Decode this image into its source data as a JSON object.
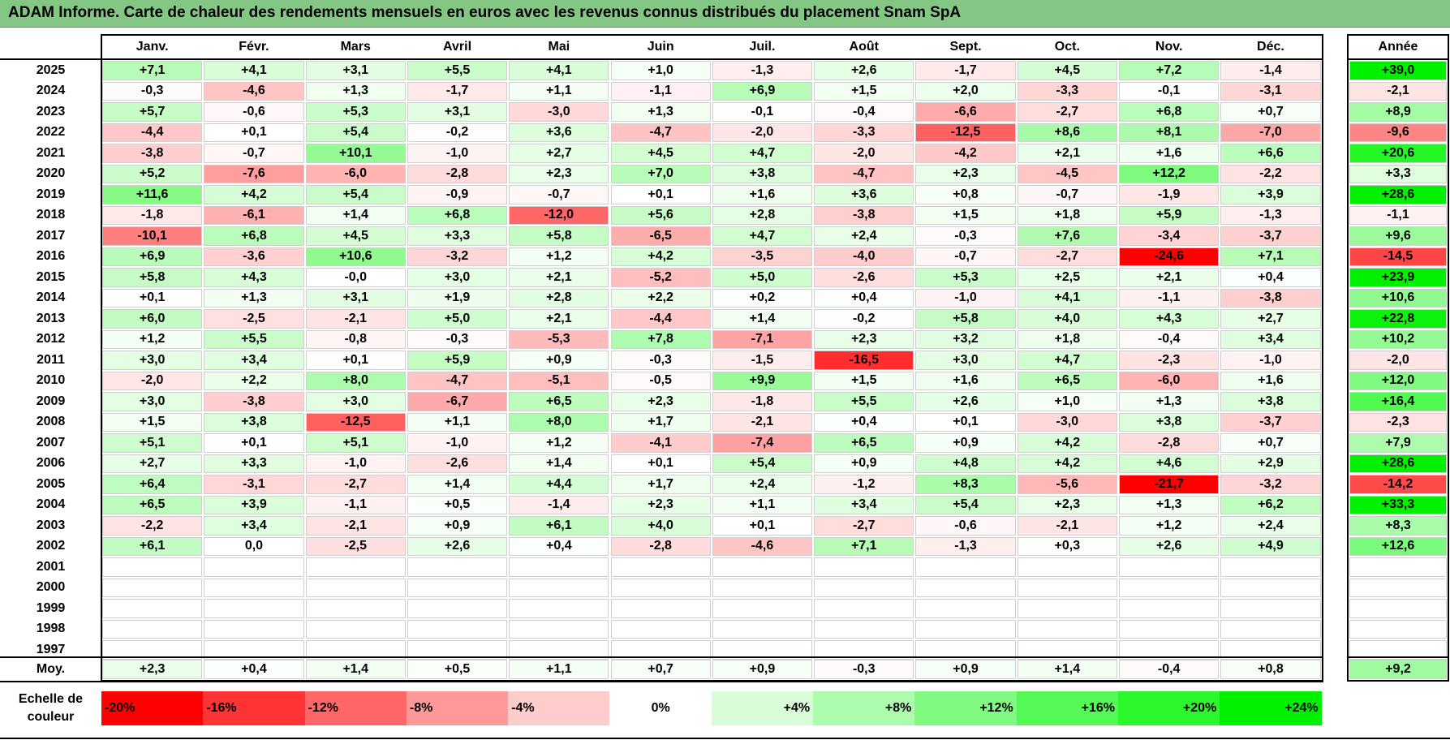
{
  "title": "ADAM Informe. Carte de chaleur des rendements mensuels en euros avec les revenus connus distribués du placement Snam SpA",
  "chart_data": {
    "type": "heatmap",
    "columns": [
      "Janv.",
      "Févr.",
      "Mars",
      "Avril",
      "Mai",
      "Juin",
      "Juil.",
      "Août",
      "Sept.",
      "Oct.",
      "Nov.",
      "Déc."
    ],
    "year_column_label": "Année",
    "rows": [
      {
        "year": "2025",
        "months": [
          "+7,1",
          "+4,1",
          "+3,1",
          "+5,5",
          "+4,1",
          "+1,0",
          "-1,3",
          "+2,6",
          "-1,7",
          "+4,5",
          "+7,2",
          "-1,4"
        ],
        "annual": "+39,0"
      },
      {
        "year": "2024",
        "months": [
          "-0,3",
          "-4,6",
          "+1,3",
          "-1,7",
          "+1,1",
          "-1,1",
          "+6,9",
          "+1,5",
          "+2,0",
          "-3,3",
          "-0,1",
          "-3,1"
        ],
        "annual": "-2,1"
      },
      {
        "year": "2023",
        "months": [
          "+5,7",
          "-0,6",
          "+5,3",
          "+3,1",
          "-3,0",
          "+1,3",
          "-0,1",
          "-0,4",
          "-6,6",
          "-2,7",
          "+6,8",
          "+0,7"
        ],
        "annual": "+8,9"
      },
      {
        "year": "2022",
        "months": [
          "-4,4",
          "+0,1",
          "+5,4",
          "-0,2",
          "+3,6",
          "-4,7",
          "-2,0",
          "-3,3",
          "-12,5",
          "+8,6",
          "+8,1",
          "-7,0"
        ],
        "annual": "-9,6"
      },
      {
        "year": "2021",
        "months": [
          "-3,8",
          "-0,7",
          "+10,1",
          "-1,0",
          "+2,7",
          "+4,5",
          "+4,7",
          "-2,0",
          "-4,2",
          "+2,1",
          "+1,6",
          "+6,6"
        ],
        "annual": "+20,6"
      },
      {
        "year": "2020",
        "months": [
          "+5,2",
          "-7,6",
          "-6,0",
          "-2,8",
          "+2,3",
          "+7,0",
          "+3,8",
          "-4,7",
          "+2,3",
          "-4,5",
          "+12,2",
          "-2,2"
        ],
        "annual": "+3,3"
      },
      {
        "year": "2019",
        "months": [
          "+11,6",
          "+4,2",
          "+5,4",
          "-0,9",
          "-0,7",
          "+0,1",
          "+1,6",
          "+3,6",
          "+0,8",
          "-0,7",
          "-1,9",
          "+3,9"
        ],
        "annual": "+28,6"
      },
      {
        "year": "2018",
        "months": [
          "-1,8",
          "-6,1",
          "+1,4",
          "+6,8",
          "-12,0",
          "+5,6",
          "+2,8",
          "-3,8",
          "+1,5",
          "+1,8",
          "+5,9",
          "-1,3"
        ],
        "annual": "-1,1"
      },
      {
        "year": "2017",
        "months": [
          "-10,1",
          "+6,8",
          "+4,5",
          "+3,3",
          "+5,8",
          "-6,5",
          "+4,7",
          "+2,4",
          "-0,3",
          "+7,6",
          "-3,4",
          "-3,7"
        ],
        "annual": "+9,6"
      },
      {
        "year": "2016",
        "months": [
          "+6,9",
          "-3,6",
          "+10,6",
          "-3,2",
          "+1,2",
          "+4,2",
          "-3,5",
          "-4,0",
          "-0,7",
          "-2,7",
          "-24,6",
          "+7,1"
        ],
        "annual": "-14,5"
      },
      {
        "year": "2015",
        "months": [
          "+5,8",
          "+4,3",
          "-0,0",
          "+3,0",
          "+2,1",
          "-5,2",
          "+5,0",
          "-2,6",
          "+5,3",
          "+2,5",
          "+2,1",
          "+0,4"
        ],
        "annual": "+23,9"
      },
      {
        "year": "2014",
        "months": [
          "+0,1",
          "+1,3",
          "+3,1",
          "+1,9",
          "+2,8",
          "+2,2",
          "+0,2",
          "+0,4",
          "-1,0",
          "+4,1",
          "-1,1",
          "-3,8"
        ],
        "annual": "+10,6"
      },
      {
        "year": "2013",
        "months": [
          "+6,0",
          "-2,5",
          "-2,1",
          "+5,0",
          "+2,1",
          "-4,4",
          "+1,4",
          "-0,2",
          "+5,8",
          "+4,0",
          "+4,3",
          "+2,7"
        ],
        "annual": "+22,8"
      },
      {
        "year": "2012",
        "months": [
          "+1,2",
          "+5,5",
          "-0,8",
          "-0,3",
          "-5,3",
          "+7,8",
          "-7,1",
          "+2,3",
          "+3,2",
          "+1,8",
          "-0,4",
          "+3,4"
        ],
        "annual": "+10,2"
      },
      {
        "year": "2011",
        "months": [
          "+3,0",
          "+3,4",
          "+0,1",
          "+5,9",
          "+0,9",
          "-0,3",
          "-1,5",
          "-16,5",
          "+3,0",
          "+4,7",
          "-2,3",
          "-1,0"
        ],
        "annual": "-2,0"
      },
      {
        "year": "2010",
        "months": [
          "-2,0",
          "+2,2",
          "+8,0",
          "-4,7",
          "-5,1",
          "-0,5",
          "+9,9",
          "+1,5",
          "+1,6",
          "+6,5",
          "-6,0",
          "+1,6"
        ],
        "annual": "+12,0"
      },
      {
        "year": "2009",
        "months": [
          "+3,0",
          "-3,8",
          "+3,0",
          "-6,7",
          "+6,5",
          "+2,3",
          "-1,8",
          "+5,5",
          "+2,6",
          "+1,0",
          "+1,3",
          "+3,8"
        ],
        "annual": "+16,4"
      },
      {
        "year": "2008",
        "months": [
          "+1,5",
          "+3,8",
          "-12,5",
          "+1,1",
          "+8,0",
          "+1,7",
          "-2,1",
          "+0,4",
          "+0,1",
          "-3,0",
          "+3,8",
          "-3,7"
        ],
        "annual": "-2,3"
      },
      {
        "year": "2007",
        "months": [
          "+5,1",
          "+0,1",
          "+5,1",
          "-1,0",
          "+1,2",
          "-4,1",
          "-7,4",
          "+6,5",
          "+0,9",
          "+4,2",
          "-2,8",
          "+0,7"
        ],
        "annual": "+7,9"
      },
      {
        "year": "2006",
        "months": [
          "+2,7",
          "+3,3",
          "-1,0",
          "-2,6",
          "+1,4",
          "+0,1",
          "+5,4",
          "+0,9",
          "+4,8",
          "+4,2",
          "+4,6",
          "+2,9"
        ],
        "annual": "+28,6"
      },
      {
        "year": "2005",
        "months": [
          "+6,4",
          "-3,1",
          "-2,7",
          "+1,4",
          "+4,4",
          "+1,7",
          "+2,4",
          "-1,2",
          "+8,3",
          "-5,6",
          "-21,7",
          "-3,2"
        ],
        "annual": "-14,2"
      },
      {
        "year": "2004",
        "months": [
          "+6,5",
          "+3,9",
          "-1,1",
          "+0,5",
          "-1,4",
          "+2,3",
          "+1,1",
          "+3,4",
          "+5,4",
          "+2,3",
          "+1,3",
          "+6,2"
        ],
        "annual": "+33,3"
      },
      {
        "year": "2003",
        "months": [
          "-2,2",
          "+3,4",
          "-2,1",
          "+0,9",
          "+6,1",
          "+4,0",
          "+0,1",
          "-2,7",
          "-0,6",
          "-2,1",
          "+1,2",
          "+2,4"
        ],
        "annual": "+8,3"
      },
      {
        "year": "2002",
        "months": [
          "+6,1",
          "0,0",
          "-2,5",
          "+2,6",
          "+0,4",
          "-2,8",
          "-4,6",
          "+7,1",
          "-1,3",
          "+0,3",
          "+2,6",
          "+4,9"
        ],
        "annual": "+12,6"
      },
      {
        "year": "2001",
        "months": [
          "",
          "",
          "",
          "",
          "",
          "",
          "",
          "",
          "",
          "",
          "",
          ""
        ],
        "annual": ""
      },
      {
        "year": "2000",
        "months": [
          "",
          "",
          "",
          "",
          "",
          "",
          "",
          "",
          "",
          "",
          "",
          ""
        ],
        "annual": ""
      },
      {
        "year": "1999",
        "months": [
          "",
          "",
          "",
          "",
          "",
          "",
          "",
          "",
          "",
          "",
          "",
          ""
        ],
        "annual": ""
      },
      {
        "year": "1998",
        "months": [
          "",
          "",
          "",
          "",
          "",
          "",
          "",
          "",
          "",
          "",
          "",
          ""
        ],
        "annual": ""
      },
      {
        "year": "1997",
        "months": [
          "",
          "",
          "",
          "",
          "",
          "",
          "",
          "",
          "",
          "",
          "",
          ""
        ],
        "annual": ""
      }
    ],
    "average": {
      "label": "Moy.",
      "months": [
        "+2,3",
        "+0,4",
        "+1,4",
        "+0,5",
        "+1,1",
        "+0,7",
        "+0,9",
        "-0,3",
        "+0,9",
        "+1,4",
        "-0,4",
        "+0,8"
      ],
      "annual": "+9,2"
    },
    "color_scale": {
      "label": "Echelle de couleur",
      "stops": [
        {
          "label": "-20%",
          "value": -20,
          "color": "#ff0000"
        },
        {
          "label": "-16%",
          "value": -16,
          "color": "#ff3333"
        },
        {
          "label": "-12%",
          "value": -12,
          "color": "#ff6666"
        },
        {
          "label": "-8%",
          "value": -8,
          "color": "#ff9999"
        },
        {
          "label": "-4%",
          "value": -4,
          "color": "#ffcccc"
        },
        {
          "label": "0%",
          "value": 0,
          "color": "#ffffff"
        },
        {
          "label": "+4%",
          "value": 4,
          "color": "#d9fdd9"
        },
        {
          "label": "+8%",
          "value": 8,
          "color": "#adfbad"
        },
        {
          "label": "+12%",
          "value": 12,
          "color": "#80fa80"
        },
        {
          "label": "+16%",
          "value": 16,
          "color": "#55f955"
        },
        {
          "label": "+20%",
          "value": 20,
          "color": "#2bf72b"
        },
        {
          "label": "+24%",
          "value": 24,
          "color": "#00f000"
        }
      ]
    }
  }
}
